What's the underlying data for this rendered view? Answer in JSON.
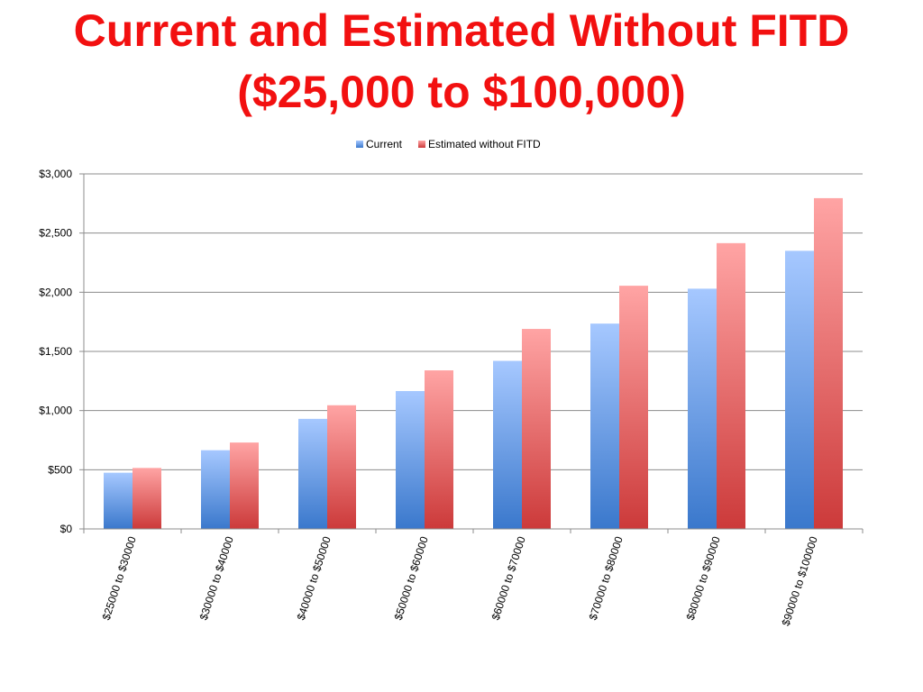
{
  "chart_data": {
    "type": "bar",
    "title_line1": "Current and Estimated Without FITD",
    "title_line2": "($25,000 to $100,000)",
    "xlabel": "",
    "ylabel": "",
    "ylim": [
      0,
      3000
    ],
    "yticks": [
      0,
      500,
      1000,
      1500,
      2000,
      2500,
      3000
    ],
    "ytick_labels": [
      "$0",
      "$500",
      "$1,000",
      "$1,500",
      "$2,000",
      "$2,500",
      "$3,000"
    ],
    "grid": true,
    "legend_position": "top-center",
    "categories": [
      "$25000 to $30000",
      "$30000 to $40000",
      "$40000 to $50000",
      "$50000 to $60000",
      "$60000 to $70000",
      "$70000 to $80000",
      "$80000 to $90000",
      "$90000 to $100000"
    ],
    "series": [
      {
        "name": "Current",
        "color_top": "#a6c8ff",
        "color_bottom": "#3a78cc",
        "values": [
          475,
          665,
          930,
          1165,
          1420,
          1735,
          2030,
          2350
        ]
      },
      {
        "name": "Estimated without FITD",
        "color_top": "#ffa4a4",
        "color_bottom": "#cc3a3a",
        "values": [
          515,
          730,
          1045,
          1340,
          1690,
          2055,
          2415,
          2795
        ]
      }
    ]
  }
}
